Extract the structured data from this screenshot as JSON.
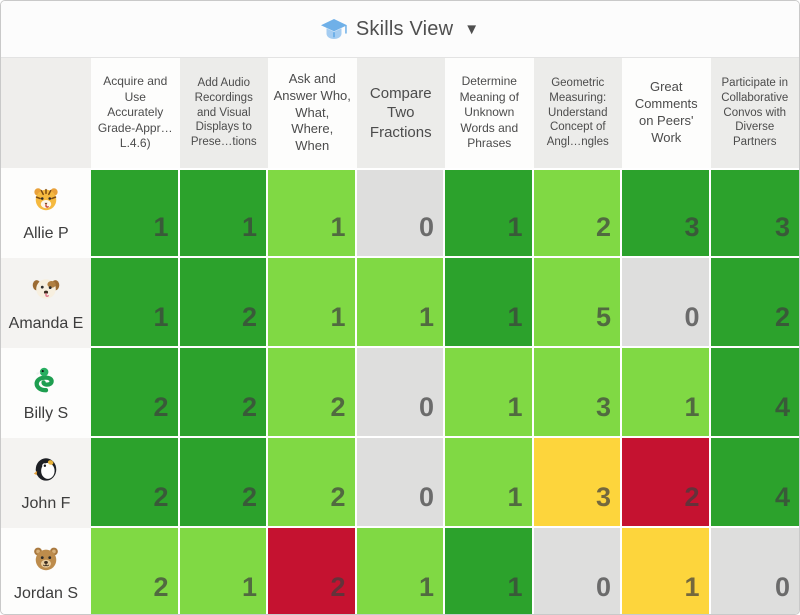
{
  "header": {
    "title": "Skills View",
    "caret": "▼",
    "icon_color": "#6fb0e8"
  },
  "colors": {
    "dark_green": "#2ca22c",
    "light_green": "#80d944",
    "gray": "#dededd",
    "yellow": "#fdd53c",
    "red": "#c51230"
  },
  "columns": [
    "Acquire and Use Accurately Grade-Appr…L.4.6)",
    "Add Audio Recordings and Visual Displays to Prese…tions",
    "Ask and Answer Who, What, Where, When",
    "Compare Two Fractions",
    "Determine Meaning of Unknown Words and Phrases",
    "Geometric Measuring: Understand Concept of Angl…ngles",
    "Great Comments on Peers' Work",
    "Participate in Collaborative Convos with Diverse Partners"
  ],
  "students": [
    {
      "name": "Allie P",
      "avatar": "tiger",
      "emoji": "🐯",
      "cells": [
        {
          "value": 1,
          "color": "dark_green"
        },
        {
          "value": 1,
          "color": "dark_green"
        },
        {
          "value": 1,
          "color": "light_green"
        },
        {
          "value": 0,
          "color": "gray"
        },
        {
          "value": 1,
          "color": "dark_green"
        },
        {
          "value": 2,
          "color": "light_green"
        },
        {
          "value": 3,
          "color": "dark_green"
        },
        {
          "value": 3,
          "color": "dark_green"
        }
      ]
    },
    {
      "name": "Amanda E",
      "avatar": "dog",
      "emoji": "🐶",
      "cells": [
        {
          "value": 1,
          "color": "dark_green"
        },
        {
          "value": 2,
          "color": "dark_green"
        },
        {
          "value": 1,
          "color": "light_green"
        },
        {
          "value": 1,
          "color": "light_green"
        },
        {
          "value": 1,
          "color": "dark_green"
        },
        {
          "value": 5,
          "color": "light_green"
        },
        {
          "value": 0,
          "color": "gray"
        },
        {
          "value": 2,
          "color": "dark_green"
        }
      ]
    },
    {
      "name": "Billy S",
      "avatar": "snake",
      "emoji": "🐍",
      "cells": [
        {
          "value": 2,
          "color": "dark_green"
        },
        {
          "value": 2,
          "color": "dark_green"
        },
        {
          "value": 2,
          "color": "light_green"
        },
        {
          "value": 0,
          "color": "gray"
        },
        {
          "value": 1,
          "color": "light_green"
        },
        {
          "value": 3,
          "color": "light_green"
        },
        {
          "value": 1,
          "color": "light_green"
        },
        {
          "value": 4,
          "color": "dark_green"
        }
      ]
    },
    {
      "name": "John F",
      "avatar": "penguin",
      "emoji": "🐧",
      "cells": [
        {
          "value": 2,
          "color": "dark_green"
        },
        {
          "value": 2,
          "color": "dark_green"
        },
        {
          "value": 2,
          "color": "light_green"
        },
        {
          "value": 0,
          "color": "gray"
        },
        {
          "value": 1,
          "color": "light_green"
        },
        {
          "value": 3,
          "color": "yellow"
        },
        {
          "value": 2,
          "color": "red"
        },
        {
          "value": 4,
          "color": "dark_green"
        }
      ]
    },
    {
      "name": "Jordan S",
      "avatar": "bear",
      "emoji": "🐻",
      "cells": [
        {
          "value": 2,
          "color": "light_green"
        },
        {
          "value": 1,
          "color": "light_green"
        },
        {
          "value": 2,
          "color": "red"
        },
        {
          "value": 1,
          "color": "light_green"
        },
        {
          "value": 1,
          "color": "dark_green"
        },
        {
          "value": 0,
          "color": "gray"
        },
        {
          "value": 1,
          "color": "yellow"
        },
        {
          "value": 0,
          "color": "gray"
        }
      ]
    }
  ]
}
